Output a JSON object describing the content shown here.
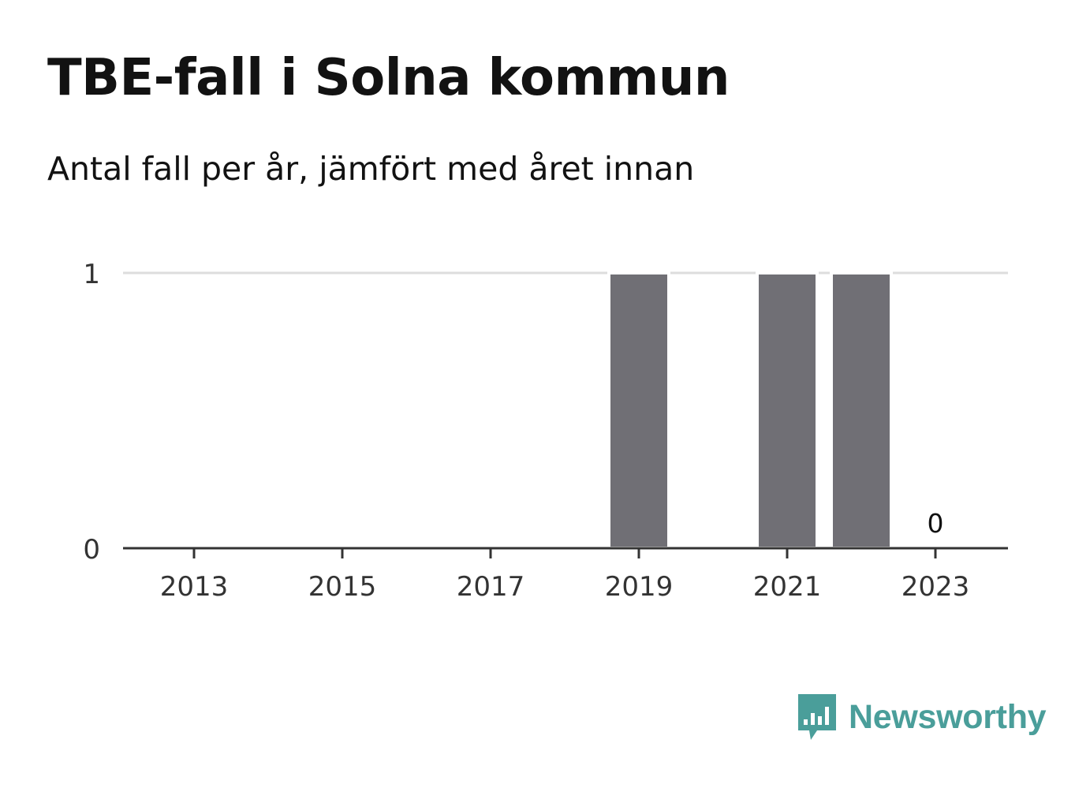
{
  "chart_data": {
    "type": "bar",
    "title": "TBE-fall i Solna kommun",
    "subtitle": "Antal fall per år, jämfört med året innan",
    "categories": [
      "2013",
      "2014",
      "2015",
      "2016",
      "2017",
      "2018",
      "2019",
      "2020",
      "2021",
      "2022",
      "2023"
    ],
    "values": [
      0,
      0,
      0,
      0,
      0,
      0,
      1,
      0,
      1,
      1,
      0
    ],
    "x_ticks": [
      "2013",
      "2015",
      "2017",
      "2019",
      "2021",
      "2023"
    ],
    "y_ticks": [
      0,
      1
    ],
    "ylim": [
      0,
      1
    ],
    "xlabel": "",
    "ylabel": "",
    "annotations": [
      {
        "category": "2023",
        "text": "0"
      }
    ],
    "grid": true,
    "legend": "none",
    "colors": {
      "bar": "#706f75",
      "grid": "#dddddd",
      "axis": "#333333"
    }
  },
  "branding": {
    "logo_text": "Newsworthy",
    "logo_icon": "bar-chart-speech-bubble-icon",
    "color": "#4a9e9a"
  }
}
